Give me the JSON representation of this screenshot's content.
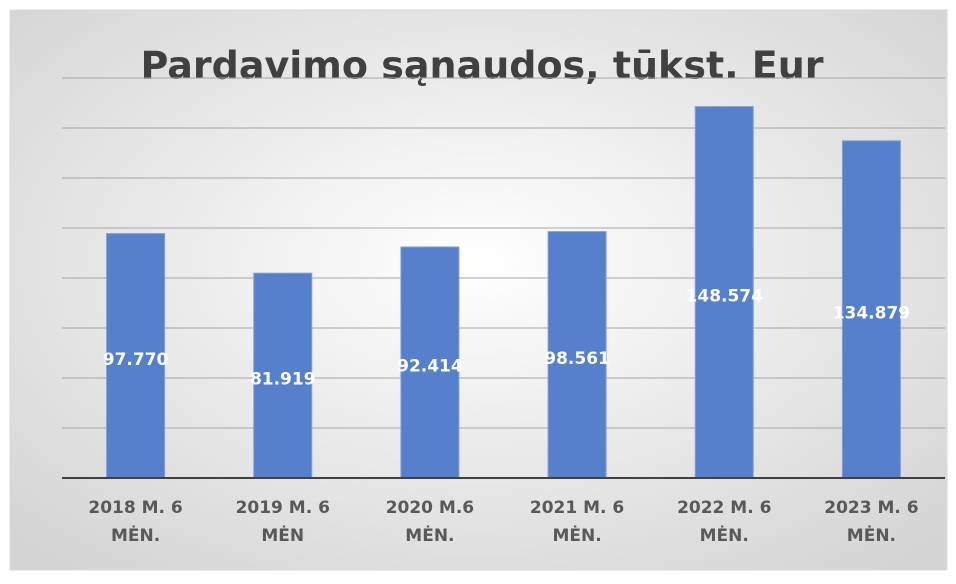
{
  "chart_data": {
    "type": "bar",
    "title": "Pardavimo sąnaudos, tūkst. Eur",
    "categories": [
      [
        "2018 M. 6",
        "MĖN."
      ],
      [
        "2019 M. 6",
        "MĖN"
      ],
      [
        "2020 M.6",
        "MĖN."
      ],
      [
        "2021 M. 6",
        "MĖN."
      ],
      [
        "2022 M. 6",
        "MĖN."
      ],
      [
        "2023 M. 6",
        "MĖN."
      ]
    ],
    "values": [
      97.77,
      81.919,
      92.414,
      98.561,
      148.574,
      134.879
    ],
    "value_labels": [
      "97.770",
      "81.919",
      "92.414",
      "98.561",
      "148.574",
      "134.879"
    ],
    "color": "#5680cb",
    "ylim": [
      0,
      160
    ],
    "yticks": [
      0,
      20,
      40,
      60,
      80,
      100,
      120,
      140,
      160
    ],
    "grid": true
  }
}
